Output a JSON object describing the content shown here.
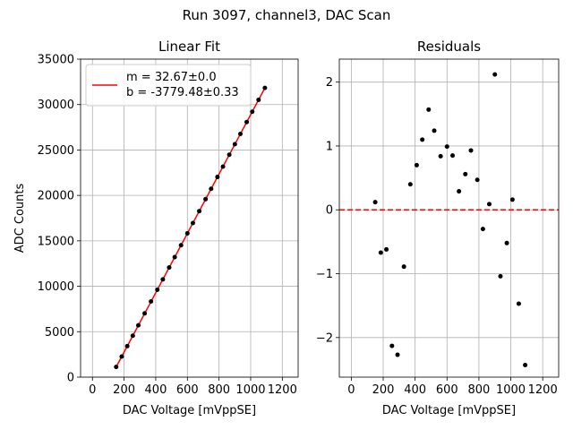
{
  "figure": {
    "suptitle": "Run 3097, channel3, DAC Scan"
  },
  "chart_data": [
    {
      "type": "scatter",
      "title": "Linear Fit",
      "xlabel": "DAC Voltage [mVppSE]",
      "ylabel": "ADC Counts",
      "xlim": [
        -75,
        1300
      ],
      "ylim": [
        0,
        35000
      ],
      "xticks": [
        0,
        200,
        400,
        600,
        800,
        1000,
        1200
      ],
      "yticks": [
        0,
        5000,
        10000,
        15000,
        20000,
        25000,
        30000,
        35000
      ],
      "grid": true,
      "legend": {
        "location": "upper-left",
        "entries": [
          "m = 32.67±0.0",
          "b = -3779.48±0.33"
        ]
      },
      "fit_line": {
        "color": "#ff0000",
        "x": [
          150,
          1090
        ],
        "y": [
          1120,
          31830
        ]
      },
      "points": {
        "color": "#000000",
        "x": [
          150,
          185,
          220,
          255,
          290,
          330,
          370,
          410,
          445,
          485,
          520,
          560,
          600,
          635,
          675,
          715,
          750,
          790,
          825,
          865,
          900,
          935,
          975,
          1010,
          1050,
          1090
        ],
        "y": [
          1120,
          2270,
          3410,
          4560,
          5710,
          7020,
          8330,
          9620,
          10760,
          12070,
          13210,
          14520,
          15830,
          16960,
          18270,
          19590,
          20730,
          22030,
          23170,
          24480,
          25630,
          26770,
          28080,
          29210,
          30520,
          31830
        ]
      }
    },
    {
      "type": "scatter",
      "title": "Residuals",
      "xlabel": "DAC Voltage [mVppSE]",
      "ylabel": "",
      "xlim": [
        -75,
        1300
      ],
      "ylim": [
        -2.62,
        2.36
      ],
      "xticks": [
        0,
        200,
        400,
        600,
        800,
        1000,
        1200
      ],
      "yticks": [
        -2,
        -1,
        0,
        1,
        2
      ],
      "grid": true,
      "zero_line": {
        "y": 0,
        "color": "#ff0000",
        "style": "dashed"
      },
      "points": {
        "color": "#000000",
        "x": [
          150,
          185,
          220,
          255,
          290,
          330,
          370,
          410,
          445,
          485,
          520,
          560,
          600,
          635,
          675,
          715,
          750,
          790,
          825,
          865,
          900,
          935,
          975,
          1010,
          1050,
          1090
        ],
        "y": [
          0.12,
          -0.67,
          -0.62,
          -2.13,
          -2.27,
          -0.89,
          0.4,
          0.7,
          1.1,
          1.57,
          1.24,
          0.84,
          0.99,
          0.85,
          0.29,
          0.56,
          0.93,
          0.47,
          -0.3,
          0.09,
          2.12,
          -1.04,
          -0.52,
          0.16,
          -1.47,
          -2.43
        ]
      }
    }
  ]
}
